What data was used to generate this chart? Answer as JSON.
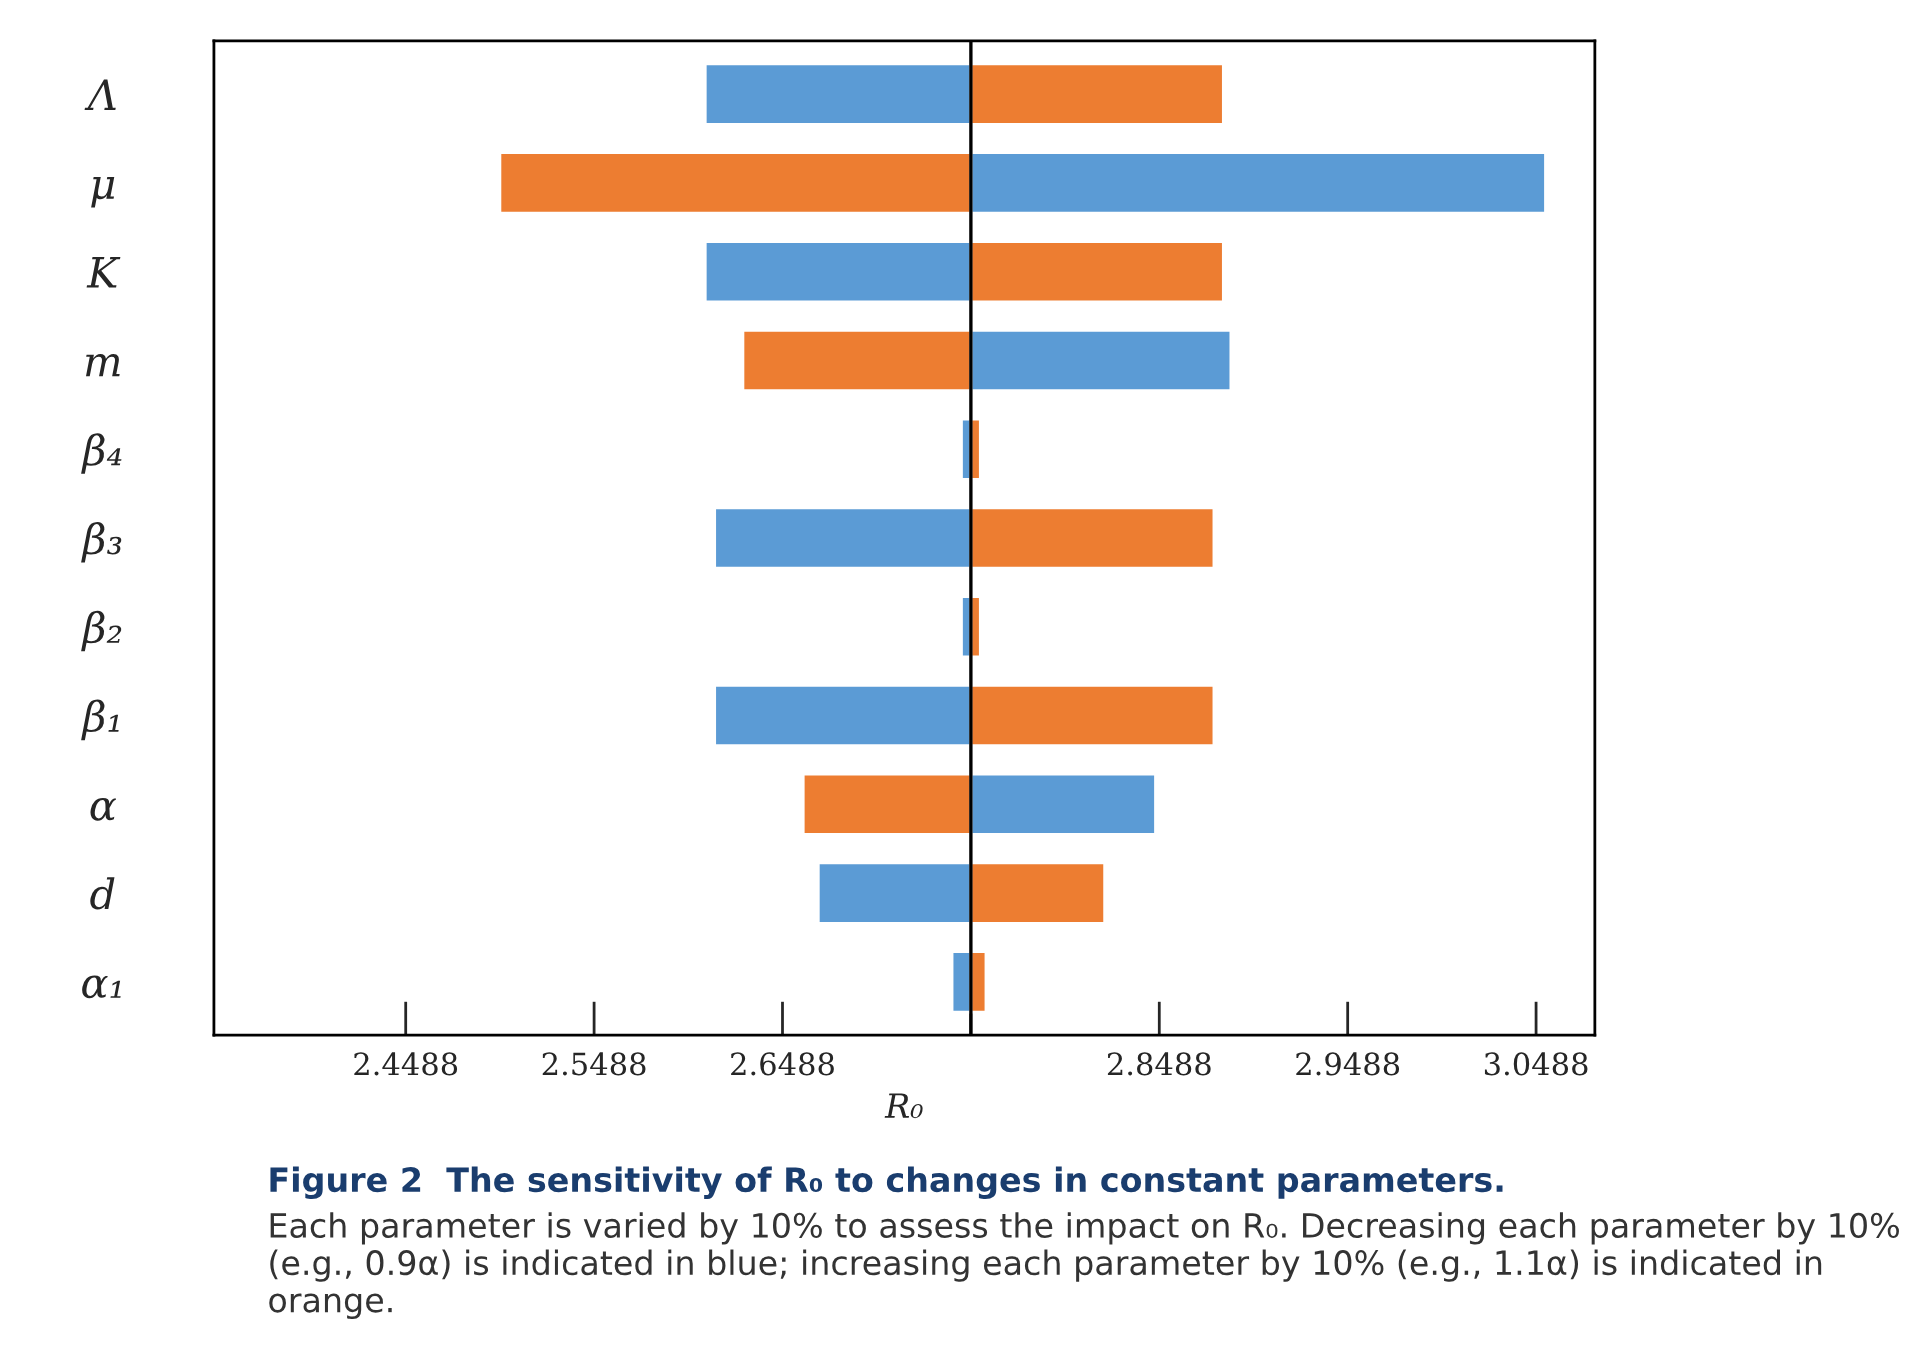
{
  "chart_data": {
    "type": "bar",
    "orientation": "horizontal",
    "xlabel": "R₀",
    "categories": [
      "Λ",
      "μ",
      "K",
      "m",
      "β₄",
      "β₃",
      "β₂",
      "β₁",
      "α",
      "d",
      "α₁"
    ],
    "series": [
      {
        "color": "#5b9bd5",
        "base": [
          2.7488,
          2.7488,
          2.7488,
          2.7488,
          2.7488,
          2.7488,
          2.7488,
          2.7488,
          2.7488,
          2.7488,
          2.7488
        ],
        "values": [
          -0.141,
          0.305,
          -0.141,
          0.138,
          -0.005,
          -0.136,
          -0.005,
          -0.136,
          0.098,
          -0.081,
          -0.01
        ]
      },
      {
        "color": "#ed7d31",
        "base": [
          2.7488,
          2.7488,
          2.7488,
          2.7488,
          2.7488,
          2.7488,
          2.7488,
          2.7488,
          2.7488,
          2.7488,
          2.7488
        ],
        "values": [
          0.134,
          -0.25,
          0.134,
          -0.121,
          0.005,
          0.129,
          0.005,
          0.129,
          -0.089,
          0.071,
          0.008
        ]
      }
    ],
    "xlim": [
      2.347,
      3.08
    ],
    "xticks": [
      2.4488,
      2.5488,
      2.6488,
      {
        "value": 2.7488,
        "label": null
      },
      2.8488,
      2.9488,
      3.0488
    ],
    "ref_lines": [
      {
        "axis": "x",
        "value": 2.7488,
        "color": "#000000"
      }
    ],
    "grid": false,
    "legend": false,
    "annotations": [
      "Figure 2  The sensitivity of R₀ to changes in constant parameters.",
      "Each parameter is varied by 10% to assess the impact on R₀. Decreasing each parameter by 10% (e.g., 0.9α) is indicated in blue; increasing each parameter by 10% (e.g., 1.1α) is indicated in orange."
    ]
  }
}
